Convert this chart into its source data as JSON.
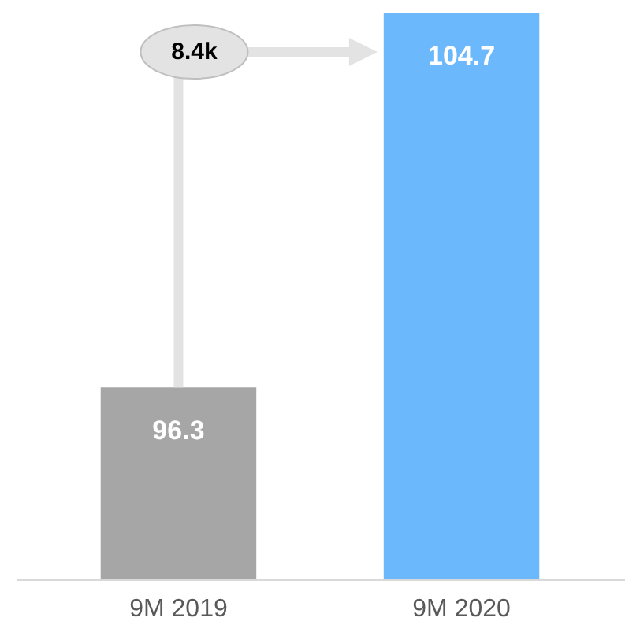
{
  "chart_data": {
    "type": "bar",
    "categories": [
      "9M 2019",
      "9M 2020"
    ],
    "values": [
      96.3,
      104.7
    ],
    "colors": [
      "#a6a6a6",
      "#6cb8fc"
    ],
    "ylim": [
      92,
      104.7
    ],
    "data_labels": true,
    "grid": false,
    "legend": false,
    "annotations": [
      "8.4k"
    ]
  }
}
